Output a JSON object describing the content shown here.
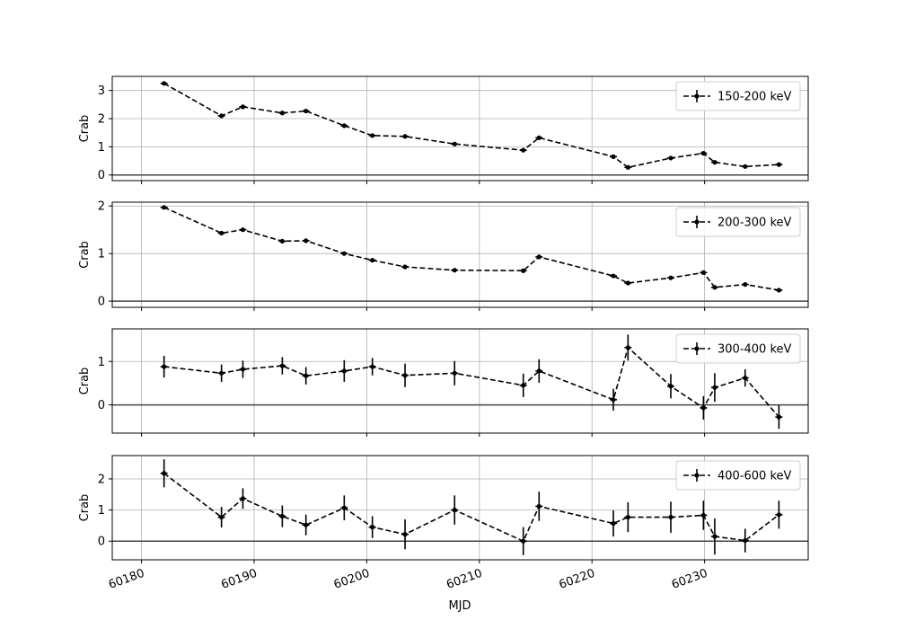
{
  "chart_data": {
    "type": "line",
    "xlabel": "MJD",
    "ylabel": "Crab",
    "xlim": [
      60177.4,
      60239.2
    ],
    "x_ticks": [
      60180,
      60190,
      60200,
      60210,
      60220,
      60230
    ],
    "x": [
      60182.0,
      60187.1,
      60189.0,
      60192.5,
      60194.6,
      60198.0,
      60200.5,
      60203.4,
      60207.8,
      60213.9,
      60215.3,
      60221.9,
      60223.2,
      60227.0,
      60229.9,
      60230.9,
      60233.6,
      60236.6
    ],
    "grid": true,
    "zero_line": true,
    "legend_position": "top-right",
    "style": {
      "line_color": "#000000",
      "line_style": "dashed",
      "marker": "point",
      "errorbars": true,
      "grid_color": "#b0b0b0",
      "zero_line_color": "#444444"
    },
    "panels": [
      {
        "series_name": "150-200 keV",
        "ylim": [
          -0.2,
          3.5
        ],
        "y_ticks": [
          0,
          1,
          2,
          3
        ],
        "values": [
          3.25,
          2.1,
          2.42,
          2.2,
          2.27,
          1.75,
          1.4,
          1.37,
          1.1,
          0.88,
          1.32,
          0.65,
          0.27,
          0.6,
          0.77,
          0.45,
          0.3,
          0.37
        ],
        "errors": [
          0.05,
          0.06,
          0.05,
          0.05,
          0.05,
          0.05,
          0.05,
          0.05,
          0.05,
          0.05,
          0.05,
          0.05,
          0.05,
          0.05,
          0.05,
          0.05,
          0.05,
          0.05
        ]
      },
      {
        "series_name": "200-300 keV",
        "ylim": [
          -0.13,
          2.08
        ],
        "y_ticks": [
          0,
          1,
          2
        ],
        "values": [
          1.97,
          1.43,
          1.5,
          1.26,
          1.27,
          1.0,
          0.86,
          0.72,
          0.65,
          0.64,
          0.93,
          0.53,
          0.38,
          0.49,
          0.6,
          0.29,
          0.35,
          0.23
        ],
        "errors": [
          0.04,
          0.04,
          0.04,
          0.04,
          0.04,
          0.04,
          0.04,
          0.04,
          0.04,
          0.04,
          0.04,
          0.04,
          0.04,
          0.04,
          0.04,
          0.04,
          0.04,
          0.04
        ]
      },
      {
        "series_name": "300-400 keV",
        "ylim": [
          -0.65,
          1.75
        ],
        "y_ticks": [
          0,
          1
        ],
        "values": [
          0.88,
          0.73,
          0.82,
          0.9,
          0.67,
          0.78,
          0.88,
          0.68,
          0.73,
          0.45,
          0.78,
          0.12,
          1.32,
          0.43,
          -0.07,
          0.4,
          0.62,
          -0.28
        ],
        "errors": [
          0.25,
          0.2,
          0.2,
          0.2,
          0.2,
          0.25,
          0.2,
          0.27,
          0.28,
          0.27,
          0.27,
          0.25,
          0.3,
          0.28,
          0.27,
          0.33,
          0.2,
          0.27
        ]
      },
      {
        "series_name": "400-600 keV",
        "ylim": [
          -0.6,
          2.75
        ],
        "y_ticks": [
          0,
          1,
          2
        ],
        "values": [
          2.18,
          0.77,
          1.37,
          0.8,
          0.52,
          1.07,
          0.45,
          0.22,
          1.0,
          0.0,
          1.12,
          0.57,
          0.77,
          0.77,
          0.83,
          0.15,
          0.02,
          0.85
        ],
        "errors": [
          0.45,
          0.33,
          0.33,
          0.35,
          0.33,
          0.4,
          0.35,
          0.48,
          0.47,
          0.45,
          0.47,
          0.42,
          0.48,
          0.5,
          0.47,
          0.58,
          0.38,
          0.45
        ]
      }
    ]
  }
}
